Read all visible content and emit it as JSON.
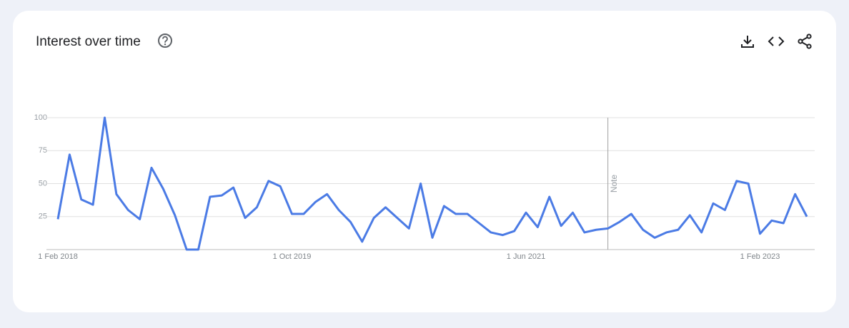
{
  "chart_data": {
    "type": "line",
    "title": "Interest over time",
    "categories": [
      "1 Feb 2018",
      null,
      null,
      null,
      null,
      null,
      null,
      null,
      null,
      null,
      null,
      null,
      null,
      null,
      null,
      null,
      null,
      null,
      null,
      null,
      "1 Oct 2019",
      null,
      null,
      null,
      null,
      null,
      null,
      null,
      null,
      null,
      null,
      null,
      null,
      null,
      null,
      null,
      null,
      null,
      null,
      null,
      "1 Jun 2021",
      null,
      null,
      null,
      null,
      null,
      null,
      null,
      null,
      null,
      null,
      null,
      null,
      null,
      null,
      null,
      null,
      null,
      null,
      null,
      "1 Feb 2023",
      null,
      null,
      null,
      null
    ],
    "series": [
      {
        "name": null,
        "color": "#4b7be5",
        "values": [
          23,
          72,
          38,
          34,
          100,
          42,
          30,
          23,
          62,
          46,
          26,
          0,
          0,
          40,
          41,
          47,
          24,
          32,
          52,
          48,
          27,
          27,
          36,
          42,
          30,
          21,
          6,
          24,
          32,
          24,
          16,
          50,
          9,
          33,
          27,
          27,
          20,
          13,
          11,
          14,
          28,
          17,
          40,
          18,
          28,
          13,
          15,
          16,
          21,
          27,
          15,
          9,
          13,
          15,
          26,
          13,
          35,
          30,
          52,
          50,
          12,
          22,
          20,
          42,
          25
        ]
      }
    ],
    "ylim": [
      0,
      100
    ],
    "yticks": [
      25,
      50,
      75,
      100
    ],
    "grid": true,
    "annotations": [
      {
        "text": "Note",
        "category_index": 47
      }
    ]
  }
}
